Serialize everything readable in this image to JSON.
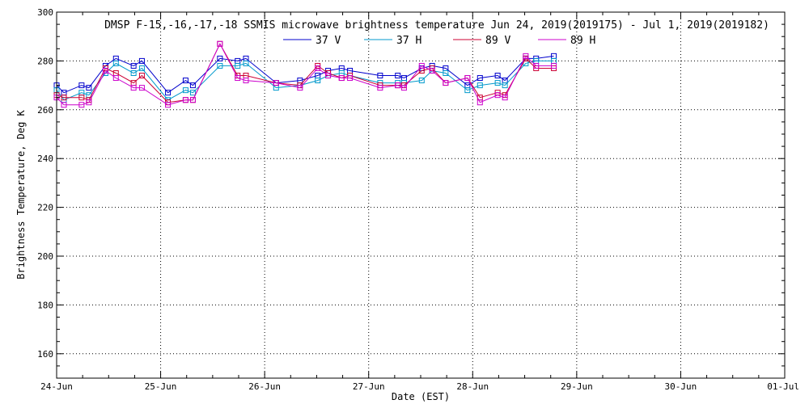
{
  "chart_data": {
    "type": "line",
    "title": "DMSP F-15,-16,-17,-18 SSMIS microwave brightness temperature Jun 24, 2019(2019175) - Jul  1, 2019(2019182)",
    "xlabel": "Date (EST)",
    "ylabel": "Brightness Temperature, Deg K",
    "x_tick_labels": [
      "24-Jun",
      "25-Jun",
      "26-Jun",
      "27-Jun",
      "28-Jun",
      "29-Jun",
      "30-Jun",
      "01-Jul"
    ],
    "xlim": [
      0,
      7
    ],
    "ylim": [
      150,
      300
    ],
    "y_ticks": [
      160,
      180,
      200,
      220,
      240,
      260,
      280,
      300
    ],
    "grid": true,
    "legend_position": "top-center",
    "colors": {
      "37 V": "#0000cc",
      "37 H": "#0099cc",
      "89 V": "#cc0033",
      "89 H": "#cc00cc"
    },
    "series": [
      {
        "name": "37 V",
        "x": [
          0.0,
          0.07,
          0.24,
          0.31,
          0.47,
          0.57,
          0.74,
          0.82,
          1.07,
          1.24,
          1.31,
          1.57,
          1.74,
          1.82,
          2.11,
          2.34,
          2.51,
          2.61,
          2.74,
          2.82,
          3.11,
          3.28,
          3.34,
          3.51,
          3.61,
          3.74,
          3.95,
          4.07,
          4.24,
          4.31,
          4.51,
          4.61,
          4.78
        ],
        "y": [
          270,
          267,
          270,
          269,
          278,
          281,
          278,
          280,
          267,
          272,
          270,
          281,
          280,
          281,
          271,
          272,
          274,
          276,
          277,
          276,
          274,
          274,
          273,
          277,
          278,
          277,
          270,
          273,
          274,
          272,
          281,
          281,
          282
        ]
      },
      {
        "name": "37 H",
        "x": [
          0.0,
          0.07,
          0.24,
          0.31,
          0.47,
          0.57,
          0.74,
          0.82,
          1.07,
          1.24,
          1.31,
          1.57,
          1.74,
          1.82,
          2.11,
          2.34,
          2.51,
          2.61,
          2.74,
          2.82,
          3.11,
          3.28,
          3.34,
          3.51,
          3.61,
          3.74,
          3.95,
          4.07,
          4.24,
          4.31,
          4.51,
          4.61,
          4.78
        ],
        "y": [
          268,
          264,
          267,
          266,
          275,
          279,
          275,
          277,
          264,
          268,
          267,
          278,
          278,
          279,
          269,
          270,
          272,
          274,
          275,
          274,
          271,
          271,
          271,
          272,
          276,
          275,
          268,
          270,
          271,
          270,
          279,
          280,
          280
        ]
      },
      {
        "name": "89 V",
        "x": [
          0.0,
          0.07,
          0.24,
          0.31,
          0.47,
          0.57,
          0.74,
          0.82,
          1.07,
          1.24,
          1.31,
          1.57,
          1.74,
          1.82,
          2.11,
          2.34,
          2.51,
          2.61,
          2.74,
          2.82,
          3.11,
          3.28,
          3.34,
          3.51,
          3.61,
          3.74,
          3.95,
          4.07,
          4.24,
          4.31,
          4.51,
          4.61,
          4.78
        ],
        "y": [
          266,
          265,
          265,
          264,
          277,
          275,
          271,
          274,
          263,
          264,
          264,
          287,
          274,
          274,
          271,
          270,
          278,
          275,
          273,
          274,
          270,
          270,
          270,
          276,
          277,
          271,
          273,
          265,
          267,
          266,
          281,
          277,
          277
        ]
      },
      {
        "name": "89 H",
        "x": [
          0.0,
          0.07,
          0.24,
          0.31,
          0.47,
          0.57,
          0.74,
          0.82,
          1.07,
          1.24,
          1.31,
          1.57,
          1.74,
          1.82,
          2.11,
          2.34,
          2.51,
          2.61,
          2.74,
          2.82,
          3.11,
          3.28,
          3.34,
          3.51,
          3.61,
          3.74,
          3.95,
          4.07,
          4.24,
          4.31,
          4.51,
          4.61,
          4.78
        ],
        "y": [
          265,
          262,
          262,
          263,
          276,
          273,
          269,
          269,
          262,
          264,
          264,
          287,
          273,
          272,
          271,
          269,
          277,
          274,
          273,
          273,
          269,
          270,
          269,
          278,
          276,
          271,
          273,
          263,
          266,
          265,
          282,
          278,
          278
        ]
      }
    ]
  }
}
